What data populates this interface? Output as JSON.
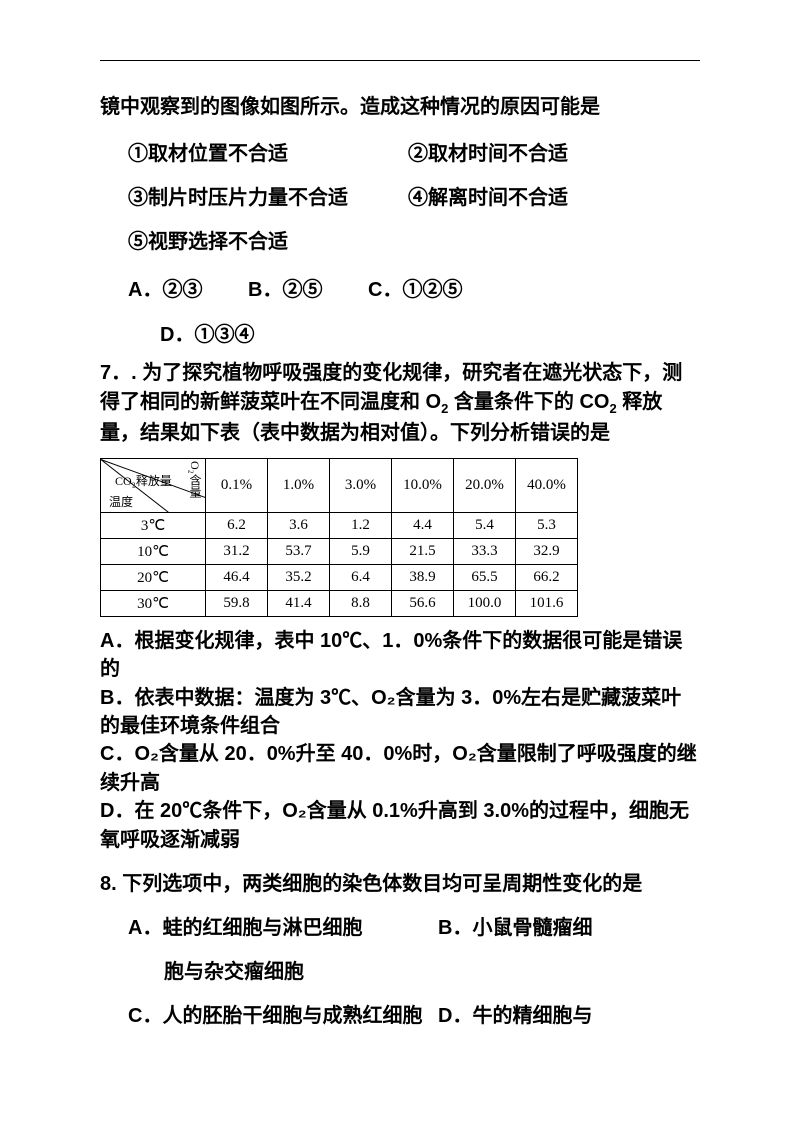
{
  "q6": {
    "stem": "镜中观察到的图像如图所示。造成这种情况的原因可能是",
    "opt1": "①取材位置不合适",
    "opt2": "②取材时间不合适",
    "opt3": "③制片时压片力量不合适",
    "opt4": "④解离时间不合适",
    "opt5": "⑤视野选择不合适",
    "A": "A．②③",
    "B": "B．②⑤",
    "C": "C．①②⑤",
    "D": "D．①③④"
  },
  "q7": {
    "stem_parts": [
      "7．. 为了探究植物呼吸强度的变化规律，研究者在遮光状态下，测得了相同的新鲜菠菜叶在不同温度和 O",
      "2",
      " 含量条件下的 CO",
      "2",
      " 释放量，结果如下表（表中数据为相对值）。下列分析错误的是"
    ],
    "table": {
      "head_top": "O₂含量",
      "head_mid": "CO₂释放量",
      "head_bot": "温度",
      "cols": [
        "0.1%",
        "1.0%",
        "3.0%",
        "10.0%",
        "20.0%",
        "40.0%"
      ],
      "rows": [
        {
          "label": "3℃",
          "v": [
            "6.2",
            "3.6",
            "1.2",
            "4.4",
            "5.4",
            "5.3"
          ]
        },
        {
          "label": "10℃",
          "v": [
            "31.2",
            "53.7",
            "5.9",
            "21.5",
            "33.3",
            "32.9"
          ]
        },
        {
          "label": "20℃",
          "v": [
            "46.4",
            "35.2",
            "6.4",
            "38.9",
            "65.5",
            "66.2"
          ]
        },
        {
          "label": "30℃",
          "v": [
            "59.8",
            "41.4",
            "8.8",
            "56.6",
            "100.0",
            "101.6"
          ]
        }
      ]
    },
    "A": "A．根据变化规律，表中 10℃、1．0%条件下的数据很可能是错误的",
    "B": "B．依表中数据：温度为 3℃、O₂含量为 3．0%左右是贮藏菠菜叶的最佳环境条件组合",
    "C": "C．O₂含量从 20．0%升至 40．0%时，O₂含量限制了呼吸强度的继续升高",
    "D": "D．在 20℃条件下，O₂含量从 0.1%升高到 3.0%的过程中，细胞无氧呼吸逐渐减弱"
  },
  "q8": {
    "stem": "8. 下列选项中，两类细胞的染色体数目均可呈周期性变化的是",
    "A": "A．蛙的红细胞与淋巴细胞",
    "B1": "B．小鼠骨髓瘤细",
    "B2": "胞与杂交瘤细胞",
    "C": "C．人的胚胎干细胞与成熟红细胞",
    "D": "D．牛的精细胞与"
  }
}
